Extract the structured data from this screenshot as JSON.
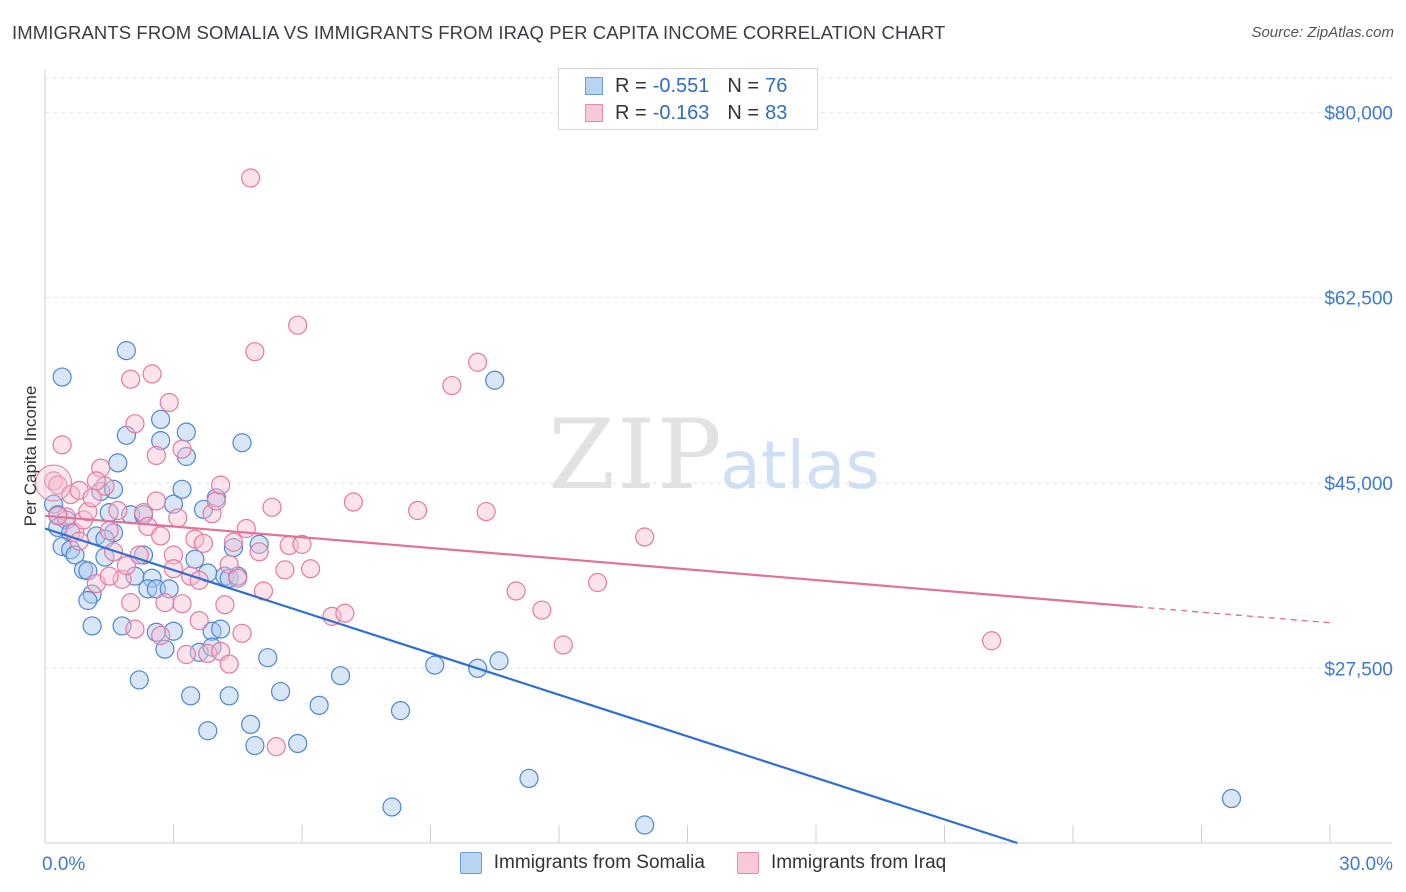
{
  "title": "IMMIGRANTS FROM SOMALIA VS IMMIGRANTS FROM IRAQ PER CAPITA INCOME CORRELATION CHART",
  "source": "Source: ZipAtlas.com",
  "watermark": {
    "zip": "ZIP",
    "atlas": "atlas"
  },
  "legend": {
    "rows": [
      {
        "r_label": "R =",
        "r_value": "-0.551",
        "n_label": "N =",
        "n_value": "76"
      },
      {
        "r_label": "R =",
        "r_value": "-0.163",
        "n_label": "N =",
        "n_value": "83"
      }
    ]
  },
  "colors": {
    "somalia_fill": "#a9c8ef",
    "somalia_stroke": "#4f86cf",
    "somalia_line": "#2f6fce",
    "iraq_fill": "#f7bfd2",
    "iraq_stroke": "#e47aa0",
    "iraq_line": "#e0729a",
    "axis_label": "#3d7ad0",
    "grid": "#e3e3e3"
  },
  "chart_data": {
    "type": "scatter",
    "title": "IMMIGRANTS FROM SOMALIA VS IMMIGRANTS FROM IRAQ PER CAPITA INCOME CORRELATION CHART",
    "xlabel": "",
    "ylabel": "Per Capita Income",
    "xlim": [
      0,
      30
    ],
    "ylim": [
      11000,
      84000
    ],
    "x_tick_labels": [
      "0.0%",
      "30.0%"
    ],
    "y_ticks": [
      {
        "value": 80000,
        "label": "$80,000"
      },
      {
        "value": 62500,
        "label": "$62,500"
      },
      {
        "value": 45000,
        "label": "$45,000"
      },
      {
        "value": 27500,
        "label": "$27,500"
      }
    ],
    "series": [
      {
        "name": "Immigrants from Somalia",
        "r": -0.551,
        "n": 76,
        "trend": {
          "x0": 0.0,
          "y0": 40700,
          "x1": 22.7,
          "y1": 11000,
          "style": "solid"
        },
        "points": [
          [
            0.4,
            55000
          ],
          [
            0.2,
            43000
          ],
          [
            0.3,
            42000
          ],
          [
            0.5,
            41500
          ],
          [
            0.3,
            40800
          ],
          [
            0.6,
            40300
          ],
          [
            0.4,
            39000
          ],
          [
            0.6,
            38700
          ],
          [
            0.7,
            38200
          ],
          [
            0.9,
            36800
          ],
          [
            1.0,
            36700
          ],
          [
            1.1,
            34500
          ],
          [
            1.0,
            33900
          ],
          [
            1.1,
            31500
          ],
          [
            1.2,
            40000
          ],
          [
            1.4,
            38000
          ],
          [
            1.3,
            44200
          ],
          [
            1.6,
            44400
          ],
          [
            1.5,
            42200
          ],
          [
            1.6,
            40300
          ],
          [
            1.7,
            46900
          ],
          [
            1.8,
            31500
          ],
          [
            1.9,
            57500
          ],
          [
            1.9,
            49500
          ],
          [
            2.0,
            42000
          ],
          [
            2.1,
            36200
          ],
          [
            2.2,
            26400
          ],
          [
            2.3,
            42000
          ],
          [
            2.3,
            38200
          ],
          [
            2.5,
            36000
          ],
          [
            2.4,
            35000
          ],
          [
            2.6,
            35000
          ],
          [
            2.7,
            49000
          ],
          [
            2.7,
            51000
          ],
          [
            2.8,
            29300
          ],
          [
            2.9,
            35000
          ],
          [
            3.0,
            31000
          ],
          [
            3.0,
            43000
          ],
          [
            3.2,
            44400
          ],
          [
            3.3,
            49800
          ],
          [
            3.3,
            47500
          ],
          [
            3.4,
            24900
          ],
          [
            3.5,
            37800
          ],
          [
            3.6,
            29000
          ],
          [
            3.7,
            42500
          ],
          [
            3.8,
            36500
          ],
          [
            3.8,
            21600
          ],
          [
            3.9,
            31000
          ],
          [
            4.0,
            43600
          ],
          [
            4.1,
            31200
          ],
          [
            4.2,
            36200
          ],
          [
            4.3,
            36000
          ],
          [
            4.3,
            24900
          ],
          [
            4.4,
            38900
          ],
          [
            4.5,
            36200
          ],
          [
            4.6,
            48800
          ],
          [
            4.8,
            22200
          ],
          [
            4.9,
            20200
          ],
          [
            5.0,
            39200
          ],
          [
            5.2,
            28500
          ],
          [
            5.5,
            25300
          ],
          [
            5.9,
            20400
          ],
          [
            6.4,
            24000
          ],
          [
            6.9,
            26800
          ],
          [
            8.1,
            14400
          ],
          [
            8.3,
            23500
          ],
          [
            9.1,
            27800
          ],
          [
            10.1,
            27500
          ],
          [
            10.5,
            54700
          ],
          [
            10.6,
            28200
          ],
          [
            11.3,
            17100
          ],
          [
            14.0,
            12700
          ],
          [
            27.7,
            15200
          ],
          [
            1.4,
            39700
          ],
          [
            2.6,
            30900
          ],
          [
            3.9,
            29500
          ]
        ]
      },
      {
        "name": "Immigrants from Iraq",
        "r": -0.163,
        "n": 83,
        "trend": {
          "x0": 0.0,
          "y0": 41900,
          "x1": 25.5,
          "y1": 33300,
          "style": "solid"
        },
        "trend_ext": {
          "x0": 25.5,
          "y0": 33300,
          "x1": 30.0,
          "y1": 31800,
          "style": "dashed"
        },
        "points": [
          [
            0.2,
            45200
          ],
          [
            0.3,
            44800
          ],
          [
            0.4,
            48600
          ],
          [
            0.5,
            41800
          ],
          [
            0.6,
            43900
          ],
          [
            0.7,
            40300
          ],
          [
            0.8,
            44300
          ],
          [
            0.9,
            41500
          ],
          [
            1.0,
            42300
          ],
          [
            1.1,
            43600
          ],
          [
            1.2,
            35500
          ],
          [
            1.3,
            46400
          ],
          [
            1.4,
            44700
          ],
          [
            1.5,
            40500
          ],
          [
            1.6,
            38500
          ],
          [
            1.7,
            42400
          ],
          [
            1.8,
            35900
          ],
          [
            1.9,
            37200
          ],
          [
            2.0,
            33700
          ],
          [
            2.0,
            54800
          ],
          [
            2.1,
            50600
          ],
          [
            2.2,
            38200
          ],
          [
            2.3,
            42200
          ],
          [
            2.4,
            40900
          ],
          [
            2.5,
            55300
          ],
          [
            2.6,
            43300
          ],
          [
            2.7,
            40000
          ],
          [
            2.8,
            33700
          ],
          [
            2.9,
            52600
          ],
          [
            3.0,
            38200
          ],
          [
            3.0,
            36900
          ],
          [
            3.1,
            41700
          ],
          [
            3.2,
            33600
          ],
          [
            3.3,
            28800
          ],
          [
            3.4,
            36200
          ],
          [
            3.5,
            39700
          ],
          [
            3.6,
            35800
          ],
          [
            3.7,
            39300
          ],
          [
            3.8,
            28900
          ],
          [
            3.9,
            42100
          ],
          [
            4.0,
            43300
          ],
          [
            4.1,
            29100
          ],
          [
            4.3,
            37300
          ],
          [
            4.3,
            27900
          ],
          [
            4.4,
            39400
          ],
          [
            4.5,
            36000
          ],
          [
            4.6,
            30800
          ],
          [
            4.7,
            40700
          ],
          [
            4.8,
            73800
          ],
          [
            4.9,
            57400
          ],
          [
            5.0,
            38500
          ],
          [
            5.1,
            34800
          ],
          [
            5.3,
            42700
          ],
          [
            5.4,
            20100
          ],
          [
            5.6,
            36800
          ],
          [
            5.7,
            39100
          ],
          [
            5.9,
            59900
          ],
          [
            6.0,
            39200
          ],
          [
            6.2,
            36900
          ],
          [
            6.7,
            32400
          ],
          [
            7.0,
            32700
          ],
          [
            7.2,
            43200
          ],
          [
            8.7,
            42400
          ],
          [
            9.5,
            54200
          ],
          [
            10.1,
            56400
          ],
          [
            10.3,
            42300
          ],
          [
            11.0,
            34800
          ],
          [
            11.6,
            33000
          ],
          [
            12.1,
            29700
          ],
          [
            12.9,
            35600
          ],
          [
            14.0,
            39900
          ],
          [
            22.1,
            30100
          ],
          [
            0.8,
            39500
          ],
          [
            1.5,
            36200
          ],
          [
            2.1,
            31200
          ],
          [
            2.7,
            30600
          ],
          [
            3.6,
            32000
          ],
          [
            4.2,
            33500
          ],
          [
            4.1,
            44800
          ],
          [
            1.2,
            45200
          ],
          [
            2.6,
            47600
          ],
          [
            3.2,
            48200
          ],
          [
            0.3,
            41900
          ]
        ]
      }
    ]
  },
  "bottom_legend": {
    "somalia_label": "Immigrants from Somalia",
    "iraq_label": "Immigrants from Iraq"
  }
}
